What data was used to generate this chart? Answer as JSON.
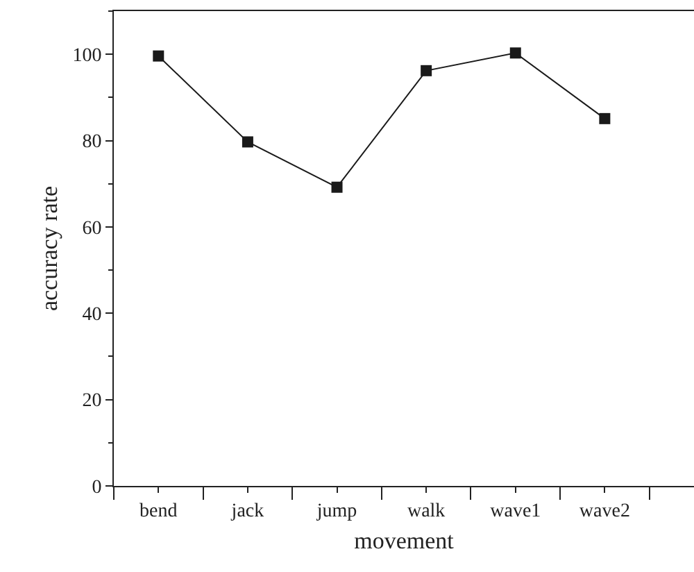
{
  "chart_data": {
    "type": "line",
    "xlabel": "movement",
    "ylabel": "accuracy rate",
    "categories": [
      "bend",
      "jack",
      "jump",
      "walk",
      "wave1",
      "wave2"
    ],
    "series": [
      {
        "color": "#1a1a1a",
        "values": [
          99.6,
          79.7,
          69.2,
          96.2,
          100.3,
          85.1
        ]
      }
    ],
    "ylim": [
      0,
      110
    ],
    "yticks": [
      0,
      20,
      40,
      60,
      80,
      100
    ],
    "marker": "square",
    "line_style": "solid"
  }
}
